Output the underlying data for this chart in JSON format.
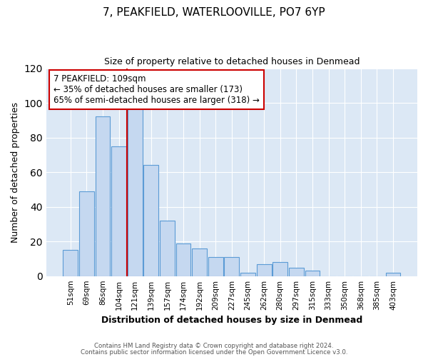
{
  "title": "7, PEAKFIELD, WATERLOOVILLE, PO7 6YP",
  "subtitle": "Size of property relative to detached houses in Denmead",
  "xlabel": "Distribution of detached houses by size in Denmead",
  "ylabel": "Number of detached properties",
  "bar_labels": [
    "51sqm",
    "69sqm",
    "86sqm",
    "104sqm",
    "121sqm",
    "139sqm",
    "157sqm",
    "174sqm",
    "192sqm",
    "209sqm",
    "227sqm",
    "245sqm",
    "262sqm",
    "280sqm",
    "297sqm",
    "315sqm",
    "333sqm",
    "350sqm",
    "368sqm",
    "385sqm",
    "403sqm"
  ],
  "bar_values": [
    15,
    49,
    92,
    75,
    100,
    64,
    32,
    19,
    16,
    11,
    11,
    2,
    7,
    8,
    5,
    3,
    0,
    0,
    0,
    0,
    2
  ],
  "bar_color": "#c5d8f0",
  "bar_edge_color": "#5b9bd5",
  "vline_color": "#cc0000",
  "annotation_title": "7 PEAKFIELD: 109sqm",
  "annotation_line1": "← 35% of detached houses are smaller (173)",
  "annotation_line2": "65% of semi-detached houses are larger (318) →",
  "annotation_box_color": "white",
  "annotation_box_edge": "#cc0000",
  "ylim": [
    0,
    120
  ],
  "yticks": [
    0,
    20,
    40,
    60,
    80,
    100,
    120
  ],
  "footer1": "Contains HM Land Registry data © Crown copyright and database right 2024.",
  "footer2": "Contains public sector information licensed under the Open Government Licence v3.0.",
  "fig_bg_color": "#ffffff",
  "plot_bg_color": "#dce8f5",
  "grid_color": "#ffffff"
}
